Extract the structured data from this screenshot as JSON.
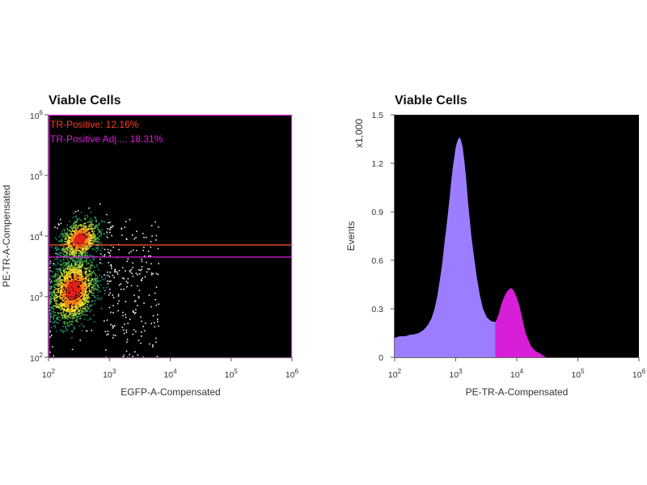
{
  "chart_data": [
    {
      "type": "scatter",
      "title": "Viable Cells",
      "xlabel": "EGFP-A-Compensated",
      "ylabel": "PE-TR-A-Compensated",
      "xscale": "log",
      "yscale": "log",
      "xlim": [
        100,
        1000000
      ],
      "ylim": [
        100,
        1000000
      ],
      "xticks": [
        {
          "base": "10",
          "exp": "2"
        },
        {
          "base": "10",
          "exp": "3"
        },
        {
          "base": "10",
          "exp": "4"
        },
        {
          "base": "10",
          "exp": "5"
        },
        {
          "base": "10",
          "exp": "6"
        }
      ],
      "yticks": [
        {
          "base": "10",
          "exp": "2"
        },
        {
          "base": "10",
          "exp": "3"
        },
        {
          "base": "10",
          "exp": "4"
        },
        {
          "base": "10",
          "exp": "5"
        },
        {
          "base": "10",
          "exp": "6"
        }
      ],
      "background": "#000000",
      "density_colors": [
        "#1b8a7a",
        "#3fb34f",
        "#a8d43a",
        "#ffe02a",
        "#ff8a1a",
        "#e8231a"
      ],
      "populations": [
        {
          "x_center": 250,
          "y_center": 1300,
          "x_spread_decades": 0.2,
          "y_spread_decades": 0.28
        },
        {
          "x_center": 320,
          "y_center": 9000,
          "x_spread_decades": 0.17,
          "y_spread_decades": 0.17
        }
      ],
      "gates": [
        {
          "label": "TR-Positive: 12.16%",
          "color": "#ff3b1f",
          "y_lower": 7000,
          "y_upper": 1000000
        },
        {
          "label": "TR-Positive Adj...: 18.31%",
          "color": "#d81ed8",
          "y_lower": 4500,
          "y_upper": 1000000
        }
      ]
    },
    {
      "type": "area",
      "title": "Viable Cells",
      "xlabel": "PE-TR-A-Compensated",
      "ylabel": "Events",
      "y_multiplier_label": "x1,000",
      "xscale": "log",
      "xlim": [
        100,
        1000000
      ],
      "ylim": [
        0,
        1.5
      ],
      "xticks": [
        {
          "base": "10",
          "exp": "2"
        },
        {
          "base": "10",
          "exp": "3"
        },
        {
          "base": "10",
          "exp": "4"
        },
        {
          "base": "10",
          "exp": "5"
        },
        {
          "base": "10",
          "exp": "6"
        }
      ],
      "yticks": [
        "0",
        "0.3",
        "0.6",
        "0.9",
        "1.2",
        "1.5"
      ],
      "ytick_values": [
        0,
        0.3,
        0.6,
        0.9,
        1.2,
        1.5
      ],
      "background": "#000000",
      "gate_split_x": 4500,
      "series": [
        {
          "fill": "#9c7dff",
          "x_range": [
            100,
            4500
          ]
        },
        {
          "fill": "#d61fd6",
          "x_range": [
            4500,
            30000
          ]
        }
      ],
      "x": [
        100,
        120,
        150,
        180,
        200,
        250,
        300,
        350,
        400,
        450,
        500,
        550,
        600,
        650,
        700,
        750,
        800,
        850,
        900,
        950,
        1000,
        1050,
        1100,
        1150,
        1200,
        1300,
        1400,
        1500,
        1600,
        1700,
        1800,
        2000,
        2200,
        2500,
        2800,
        3200,
        3600,
        4000,
        4500,
        5000,
        5500,
        6000,
        6500,
        7000,
        7500,
        8000,
        8500,
        9000,
        10000,
        11000,
        12000,
        13000,
        14000,
        15000,
        17000,
        20000,
        25000,
        30000
      ],
      "y": [
        0.12,
        0.13,
        0.13,
        0.14,
        0.14,
        0.15,
        0.17,
        0.2,
        0.24,
        0.3,
        0.38,
        0.48,
        0.58,
        0.7,
        0.8,
        0.9,
        1.0,
        1.1,
        1.18,
        1.24,
        1.3,
        1.33,
        1.35,
        1.36,
        1.35,
        1.3,
        1.2,
        1.08,
        0.95,
        0.85,
        0.75,
        0.62,
        0.5,
        0.38,
        0.3,
        0.25,
        0.23,
        0.22,
        0.22,
        0.26,
        0.32,
        0.36,
        0.39,
        0.41,
        0.42,
        0.43,
        0.42,
        0.41,
        0.37,
        0.32,
        0.26,
        0.2,
        0.15,
        0.12,
        0.07,
        0.04,
        0.02,
        0
      ]
    }
  ]
}
